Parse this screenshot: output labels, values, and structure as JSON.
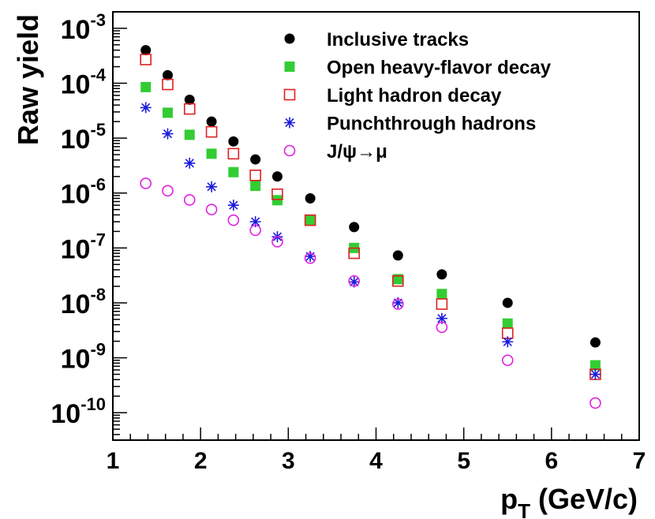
{
  "chart_data": {
    "type": "scatter",
    "xscale": "linear",
    "yscale": "log",
    "xlim": [
      1,
      7
    ],
    "ylim_exp": [
      -10.5,
      -2.7
    ],
    "xticks": [
      "1",
      "2",
      "3",
      "4",
      "5",
      "6",
      "7"
    ],
    "yticks": [
      {
        "exp": -10,
        "mantissa": "10",
        "sup": "-10"
      },
      {
        "exp": -9,
        "mantissa": "10",
        "sup": "-9"
      },
      {
        "exp": -8,
        "mantissa": "10",
        "sup": "-8"
      },
      {
        "exp": -7,
        "mantissa": "10",
        "sup": "-7"
      },
      {
        "exp": -6,
        "mantissa": "10",
        "sup": "-6"
      },
      {
        "exp": -5,
        "mantissa": "10",
        "sup": "-5"
      },
      {
        "exp": -4,
        "mantissa": "10",
        "sup": "-4"
      },
      {
        "exp": -3,
        "mantissa": "10",
        "sup": "-3"
      }
    ],
    "xlabel": {
      "main": "p",
      "sub": "T",
      "rest": " (GeV/c)"
    },
    "ylabel": "Raw yield",
    "legend_position": "top-right",
    "x": [
      1.375,
      1.625,
      1.875,
      2.125,
      2.375,
      2.625,
      2.875,
      3.25,
      3.75,
      4.25,
      4.75,
      5.5,
      6.5
    ],
    "series": [
      {
        "name": "Inclusive tracks",
        "marker": "filled-circle",
        "color": "#000000",
        "values": [
          0.0004,
          0.00014,
          5e-05,
          2e-05,
          8.7e-06,
          4.1e-06,
          2e-06,
          8e-07,
          2.4e-07,
          7.3e-08,
          3.3e-08,
          1e-08,
          1.9e-09
        ]
      },
      {
        "name": "Open heavy-flavor decay",
        "marker": "filled-square",
        "color": "#33cc33",
        "values": [
          8.5e-05,
          2.9e-05,
          1.15e-05,
          5.2e-06,
          2.4e-06,
          1.35e-06,
          7.4e-07,
          3.2e-07,
          1e-07,
          2.7e-08,
          1.45e-08,
          4.2e-09,
          7.3e-10
        ]
      },
      {
        "name": "Light hadron decay",
        "marker": "open-square",
        "color": "#e02020",
        "values": [
          0.00027,
          9.5e-05,
          3.4e-05,
          1.3e-05,
          5.2e-06,
          2.1e-06,
          9.5e-07,
          3.2e-07,
          8e-08,
          2.5e-08,
          9.5e-09,
          2.8e-09,
          5e-10
        ]
      },
      {
        "name": "Punchthrough hadrons",
        "marker": "star",
        "color": "#1a1adb",
        "values": [
          3.6e-05,
          1.2e-05,
          3.5e-06,
          1.3e-06,
          6e-07,
          3e-07,
          1.6e-07,
          7e-08,
          2.4e-08,
          1e-08,
          5.2e-09,
          1.95e-09,
          5e-10
        ]
      },
      {
        "name": "J/ψ→μ",
        "marker": "open-circle",
        "color": "#e020e0",
        "values": [
          1.5e-06,
          1.1e-06,
          7.5e-07,
          5e-07,
          3.2e-07,
          2.1e-07,
          1.3e-07,
          6.5e-08,
          2.5e-08,
          9.5e-09,
          3.6e-09,
          9e-10,
          1.5e-10
        ]
      }
    ]
  }
}
